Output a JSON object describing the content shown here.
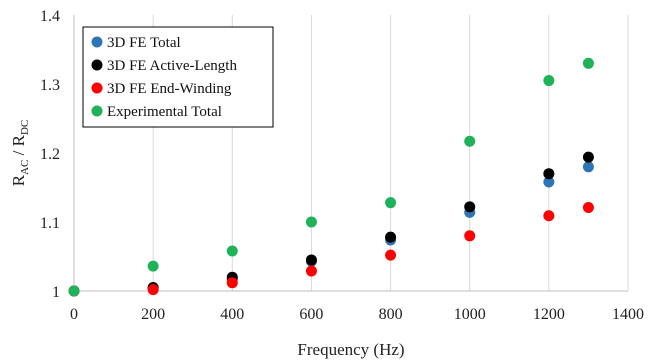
{
  "chart_data": {
    "type": "scatter",
    "xlabel": "Frequency (Hz)",
    "ylabel_parts": {
      "main": "R",
      "sub1": "AC",
      "sep": " / R",
      "sub2": "DC"
    },
    "xlim": [
      0,
      1400
    ],
    "ylim": [
      1.0,
      1.4
    ],
    "x_ticks": [
      "0",
      "200",
      "400",
      "600",
      "800",
      "1000",
      "1200",
      "1400"
    ],
    "y_ticks": [
      "1",
      "1.1",
      "1.2",
      "1.3",
      "1.4"
    ],
    "grid": "vertical",
    "legend_position": "top-left",
    "series": [
      {
        "name": "3D FE Total",
        "color": "#2e75b6",
        "points": [
          [
            0,
            1.0
          ],
          [
            200,
            1.004
          ],
          [
            400,
            1.017
          ],
          [
            600,
            1.043
          ],
          [
            800,
            1.074
          ],
          [
            1000,
            1.114
          ],
          [
            1200,
            1.158
          ],
          [
            1300,
            1.18
          ]
        ]
      },
      {
        "name": "3D FE Active-Length",
        "color": "#000000",
        "points": [
          [
            0,
            1.0
          ],
          [
            200,
            1.005
          ],
          [
            400,
            1.02
          ],
          [
            600,
            1.045
          ],
          [
            800,
            1.078
          ],
          [
            1000,
            1.122
          ],
          [
            1200,
            1.17
          ],
          [
            1300,
            1.194
          ]
        ]
      },
      {
        "name": "3D FE End-Winding",
        "color": "#ff0000",
        "points": [
          [
            0,
            1.0
          ],
          [
            200,
            1.002
          ],
          [
            400,
            1.012
          ],
          [
            600,
            1.029
          ],
          [
            800,
            1.052
          ],
          [
            1000,
            1.08
          ],
          [
            1200,
            1.109
          ],
          [
            1300,
            1.121
          ]
        ]
      },
      {
        "name": "Experimental Total",
        "color": "#1fb259",
        "points": [
          [
            0,
            1.0
          ],
          [
            200,
            1.036
          ],
          [
            400,
            1.058
          ],
          [
            600,
            1.1
          ],
          [
            800,
            1.128
          ],
          [
            1000,
            1.217
          ],
          [
            1200,
            1.305
          ],
          [
            1300,
            1.33
          ]
        ]
      }
    ]
  }
}
